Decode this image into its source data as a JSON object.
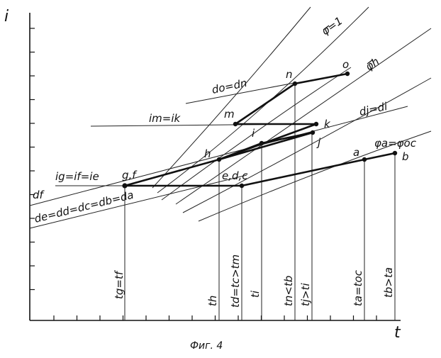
{
  "figure": {
    "axis_y_label": "i",
    "axis_x_label": "t",
    "caption": "Фиг. 4"
  },
  "curve_labels": {
    "phi_1": "φ=1",
    "phi_h": "φh",
    "phi_a_oc": "φa=φoc",
    "df": "df",
    "de_da": "de=dd=dc=db=da",
    "dj_di": "dj=di",
    "do_dn": "do=dn",
    "im_ik": "im=ik",
    "ig_ie": "ig=if=ie"
  },
  "points": {
    "o": "o",
    "n": "n",
    "m": "m",
    "k": "k",
    "i": "i",
    "j": "j",
    "h": "h",
    "gf": "g,f",
    "edc": "e,d,c",
    "a": "a",
    "b": "b"
  },
  "time_labels": {
    "tg_tf": "tg=tf",
    "th": "th",
    "td_tc_tm": "td=tc>tm",
    "ti": "ti",
    "tn_tb": "tn<tb",
    "tj_ti": "tj>ti",
    "ta_toc": "ta=toc",
    "tb_ta": "tb>ta"
  }
}
